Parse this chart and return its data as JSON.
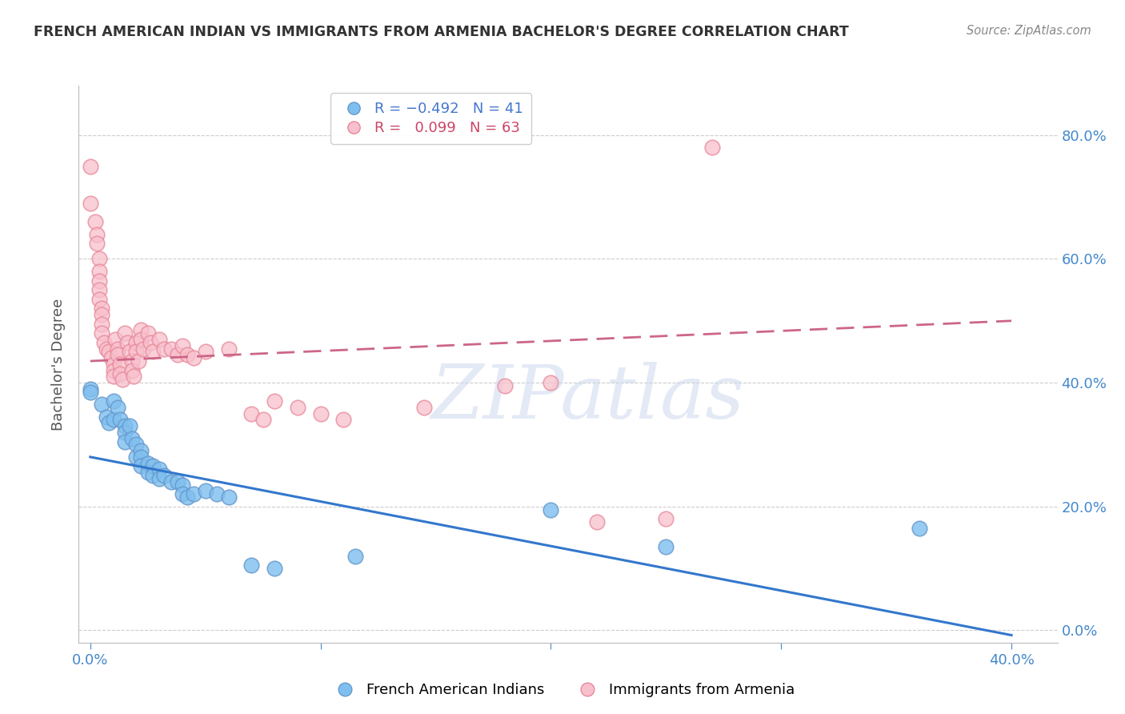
{
  "title": "FRENCH AMERICAN INDIAN VS IMMIGRANTS FROM ARMENIA BACHELOR'S DEGREE CORRELATION CHART",
  "source": "Source: ZipAtlas.com",
  "ylabel": "Bachelor's Degree",
  "right_yticks": [
    0.0,
    0.2,
    0.4,
    0.6,
    0.8
  ],
  "xlim": [
    -0.005,
    0.42
  ],
  "ylim": [
    -0.02,
    0.88
  ],
  "ylim_display": [
    0.0,
    0.8
  ],
  "xticks": [
    0.0,
    0.1,
    0.2,
    0.3,
    0.4
  ],
  "legend_label1": "French American Indians",
  "legend_label2": "Immigrants from Armenia",
  "blue_scatter": [
    [
      0.0,
      0.39
    ],
    [
      0.0,
      0.385
    ],
    [
      0.005,
      0.365
    ],
    [
      0.007,
      0.345
    ],
    [
      0.008,
      0.335
    ],
    [
      0.01,
      0.37
    ],
    [
      0.01,
      0.34
    ],
    [
      0.012,
      0.36
    ],
    [
      0.013,
      0.34
    ],
    [
      0.015,
      0.33
    ],
    [
      0.015,
      0.32
    ],
    [
      0.015,
      0.305
    ],
    [
      0.017,
      0.33
    ],
    [
      0.018,
      0.31
    ],
    [
      0.02,
      0.3
    ],
    [
      0.02,
      0.28
    ],
    [
      0.022,
      0.29
    ],
    [
      0.022,
      0.28
    ],
    [
      0.022,
      0.265
    ],
    [
      0.025,
      0.27
    ],
    [
      0.025,
      0.255
    ],
    [
      0.027,
      0.265
    ],
    [
      0.027,
      0.25
    ],
    [
      0.03,
      0.26
    ],
    [
      0.03,
      0.245
    ],
    [
      0.032,
      0.25
    ],
    [
      0.035,
      0.24
    ],
    [
      0.038,
      0.24
    ],
    [
      0.04,
      0.235
    ],
    [
      0.04,
      0.22
    ],
    [
      0.042,
      0.215
    ],
    [
      0.045,
      0.22
    ],
    [
      0.05,
      0.225
    ],
    [
      0.055,
      0.22
    ],
    [
      0.06,
      0.215
    ],
    [
      0.07,
      0.105
    ],
    [
      0.08,
      0.1
    ],
    [
      0.115,
      0.12
    ],
    [
      0.2,
      0.195
    ],
    [
      0.25,
      0.135
    ],
    [
      0.36,
      0.165
    ]
  ],
  "pink_scatter": [
    [
      0.0,
      0.75
    ],
    [
      0.0,
      0.69
    ],
    [
      0.002,
      0.66
    ],
    [
      0.003,
      0.64
    ],
    [
      0.003,
      0.625
    ],
    [
      0.004,
      0.6
    ],
    [
      0.004,
      0.58
    ],
    [
      0.004,
      0.565
    ],
    [
      0.004,
      0.55
    ],
    [
      0.004,
      0.535
    ],
    [
      0.005,
      0.52
    ],
    [
      0.005,
      0.51
    ],
    [
      0.005,
      0.495
    ],
    [
      0.005,
      0.48
    ],
    [
      0.006,
      0.465
    ],
    [
      0.007,
      0.455
    ],
    [
      0.008,
      0.45
    ],
    [
      0.009,
      0.44
    ],
    [
      0.01,
      0.43
    ],
    [
      0.01,
      0.42
    ],
    [
      0.01,
      0.41
    ],
    [
      0.011,
      0.47
    ],
    [
      0.012,
      0.455
    ],
    [
      0.012,
      0.445
    ],
    [
      0.013,
      0.43
    ],
    [
      0.013,
      0.415
    ],
    [
      0.014,
      0.405
    ],
    [
      0.015,
      0.48
    ],
    [
      0.016,
      0.465
    ],
    [
      0.017,
      0.45
    ],
    [
      0.018,
      0.435
    ],
    [
      0.018,
      0.42
    ],
    [
      0.019,
      0.41
    ],
    [
      0.02,
      0.465
    ],
    [
      0.02,
      0.45
    ],
    [
      0.021,
      0.435
    ],
    [
      0.022,
      0.485
    ],
    [
      0.022,
      0.47
    ],
    [
      0.023,
      0.455
    ],
    [
      0.025,
      0.48
    ],
    [
      0.026,
      0.465
    ],
    [
      0.027,
      0.45
    ],
    [
      0.03,
      0.47
    ],
    [
      0.032,
      0.455
    ],
    [
      0.035,
      0.455
    ],
    [
      0.038,
      0.445
    ],
    [
      0.04,
      0.46
    ],
    [
      0.042,
      0.445
    ],
    [
      0.045,
      0.44
    ],
    [
      0.05,
      0.45
    ],
    [
      0.06,
      0.455
    ],
    [
      0.07,
      0.35
    ],
    [
      0.075,
      0.34
    ],
    [
      0.08,
      0.37
    ],
    [
      0.09,
      0.36
    ],
    [
      0.1,
      0.35
    ],
    [
      0.11,
      0.34
    ],
    [
      0.145,
      0.36
    ],
    [
      0.18,
      0.395
    ],
    [
      0.2,
      0.4
    ],
    [
      0.22,
      0.175
    ],
    [
      0.25,
      0.18
    ],
    [
      0.27,
      0.78
    ]
  ],
  "blue_trend": [
    0.0,
    0.28,
    0.4,
    -0.008
  ],
  "pink_trend": [
    0.0,
    0.435,
    0.4,
    0.5
  ],
  "blue_dot_color": "#7fbfef",
  "blue_edge_color": "#6699cc",
  "pink_dot_color": "#f8c0cc",
  "pink_edge_color": "#e88899",
  "trend_blue_color": "#3377cc",
  "trend_pink_color": "#cc6688",
  "watermark": "ZIPatlas",
  "background_color": "#ffffff",
  "grid_color": "#cccccc",
  "title_color": "#333333",
  "axis_color": "#4488cc",
  "ylabel_color": "#555555"
}
